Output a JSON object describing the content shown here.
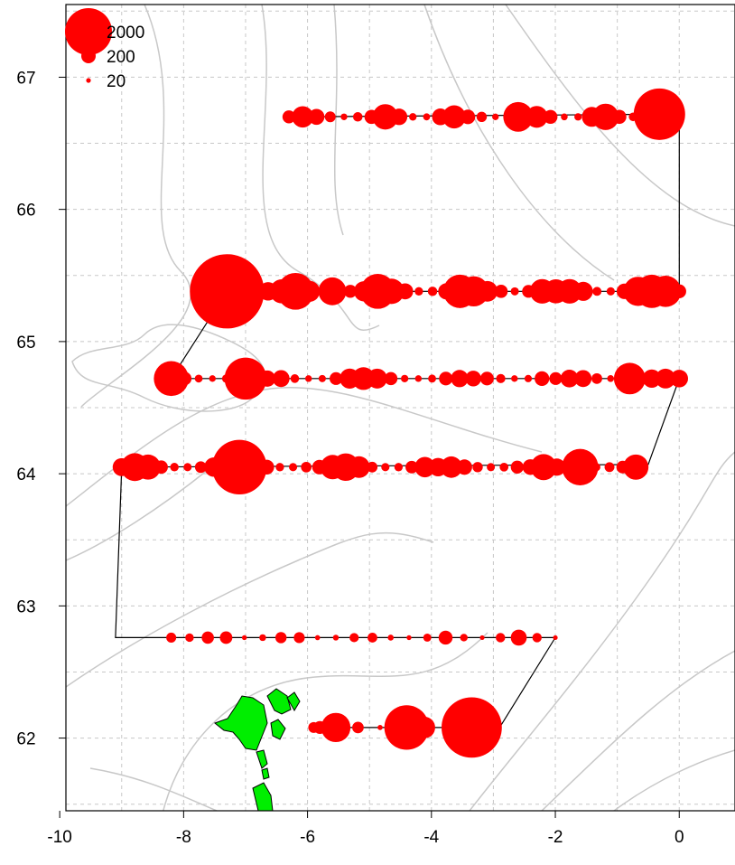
{
  "map": {
    "x_ticks": [
      "-10",
      "-8",
      "-6",
      "-4",
      "-2",
      "0"
    ],
    "y_ticks": [
      "62",
      "63",
      "64",
      "65",
      "66",
      "67"
    ],
    "xlim": [
      -9.9,
      0.9
    ],
    "ylim": [
      61.45,
      67.55
    ],
    "colors": {
      "bubble": "#ff0000",
      "land": "#00ee00",
      "grid": "#c8c8c8",
      "contour": "#c8c8c8",
      "track": "#000000"
    }
  },
  "legend": {
    "entries": [
      {
        "label": "2000",
        "value": 2000
      },
      {
        "label": "200",
        "value": 200
      },
      {
        "label": "20",
        "value": 20
      }
    ]
  },
  "track": [
    [
      -6.3,
      66.7
    ],
    [
      -0.3,
      66.72
    ],
    [
      0.0,
      66.72
    ],
    [
      0.0,
      65.38
    ],
    [
      -7.3,
      65.38
    ],
    [
      -8.2,
      64.72
    ],
    [
      0.0,
      64.72
    ],
    [
      -0.5,
      64.07
    ],
    [
      -9.0,
      64.05
    ],
    [
      -9.1,
      62.76
    ],
    [
      -2.0,
      62.76
    ],
    [
      -2.9,
      62.08
    ],
    [
      -5.9,
      62.08
    ]
  ],
  "bubbles": {
    "transects": [
      {
        "lat": 66.7,
        "lon_from": -6.3,
        "lon_to": -0.3,
        "count": 28,
        "max": 2400,
        "base": 40
      },
      {
        "lat": 65.38,
        "lon_from": -7.3,
        "lon_to": 0.0,
        "count": 34,
        "max": 5000,
        "base": 60
      },
      {
        "lat": 64.72,
        "lon_from": -8.2,
        "lon_to": 0.0,
        "count": 38,
        "max": 1800,
        "base": 40
      },
      {
        "lat": 64.05,
        "lon_from": -9.0,
        "lon_to": -0.7,
        "count": 40,
        "max": 3000,
        "base": 60
      },
      {
        "lat": 62.76,
        "lon_from": -8.2,
        "lon_to": -2.0,
        "count": 22,
        "max": 900,
        "base": 20
      },
      {
        "lat": 62.08,
        "lon_from": -5.9,
        "lon_to": -3.4,
        "count": 8,
        "max": 3300,
        "base": 10
      }
    ],
    "large": [
      {
        "lon": -0.32,
        "lat": 66.72,
        "value": 2400
      },
      {
        "lon": -7.3,
        "lat": 65.38,
        "value": 5000
      },
      {
        "lon": -8.2,
        "lat": 64.72,
        "value": 1100
      },
      {
        "lon": -7.0,
        "lat": 64.72,
        "value": 1600
      },
      {
        "lon": -7.1,
        "lat": 64.05,
        "value": 2700
      },
      {
        "lon": -1.6,
        "lat": 64.05,
        "value": 1200
      },
      {
        "lon": -0.8,
        "lat": 64.72,
        "value": 900
      },
      {
        "lon": -2.6,
        "lat": 66.7,
        "value": 800
      },
      {
        "lon": -5.6,
        "lat": 65.38,
        "value": 700
      },
      {
        "lon": -4.4,
        "lat": 62.08,
        "value": 1800
      },
      {
        "lon": -3.35,
        "lat": 62.08,
        "value": 3300
      },
      {
        "lon": -5.8,
        "lat": 62.08,
        "value": 150
      },
      {
        "lon": -8.2,
        "lat": 62.76,
        "value": 90
      }
    ]
  }
}
